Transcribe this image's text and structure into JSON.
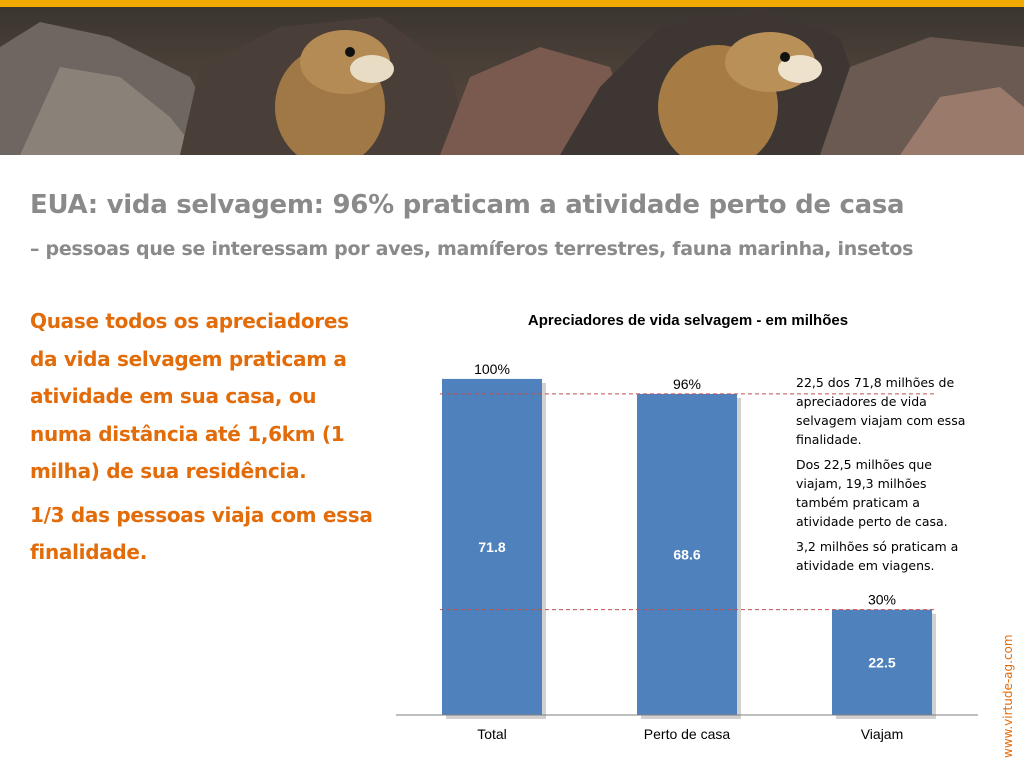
{
  "header": {
    "title": "EUA: vida selvagem: 96% praticam a atividade perto de casa",
    "subtitle": "– pessoas que se interessam por aves, mamíferos terrestres, fauna marinha, insetos"
  },
  "left_panel": {
    "paragraph_1": "Quase todos os apreciadores da vida selvagem praticam a atividade em sua casa, ou numa distância até 1,6km (1 milha) de sua residência.",
    "paragraph_2": "1/3 das pessoas viaja com essa finalidade."
  },
  "notes": {
    "note_1": "22,5 dos 71,8 milhões de apreciadores de vida selvagem viajam com essa finalidade.",
    "note_2": "Dos 22,5 milhões que viajam, 19,3 milhões também praticam a atividade perto de casa.",
    "note_3": "3,2 milhões só praticam a atividade em viagens."
  },
  "watermark": "www.virtude-ag.com",
  "colors": {
    "accent_orange": "#e36c0a",
    "top_bar": "#f2a900",
    "bar_blue": "#4f81bd",
    "reference_line": "#c0504d",
    "title_gray": "#8a8a8a"
  },
  "chart_data": {
    "type": "bar",
    "title": "Apreciadores de vida selvagem - em milhões",
    "categories": [
      "Total",
      "Perto de casa",
      "Viajam"
    ],
    "values": [
      71.8,
      68.6,
      22.5
    ],
    "value_labels": [
      "71.8",
      "68.6",
      "22.5"
    ],
    "percent_labels": [
      "100%",
      "96%",
      "30%"
    ],
    "ylim": [
      0,
      75
    ],
    "reference_lines": [
      68.6,
      22.5
    ],
    "grid": false,
    "legend": "none",
    "xlabel": "",
    "ylabel": ""
  }
}
